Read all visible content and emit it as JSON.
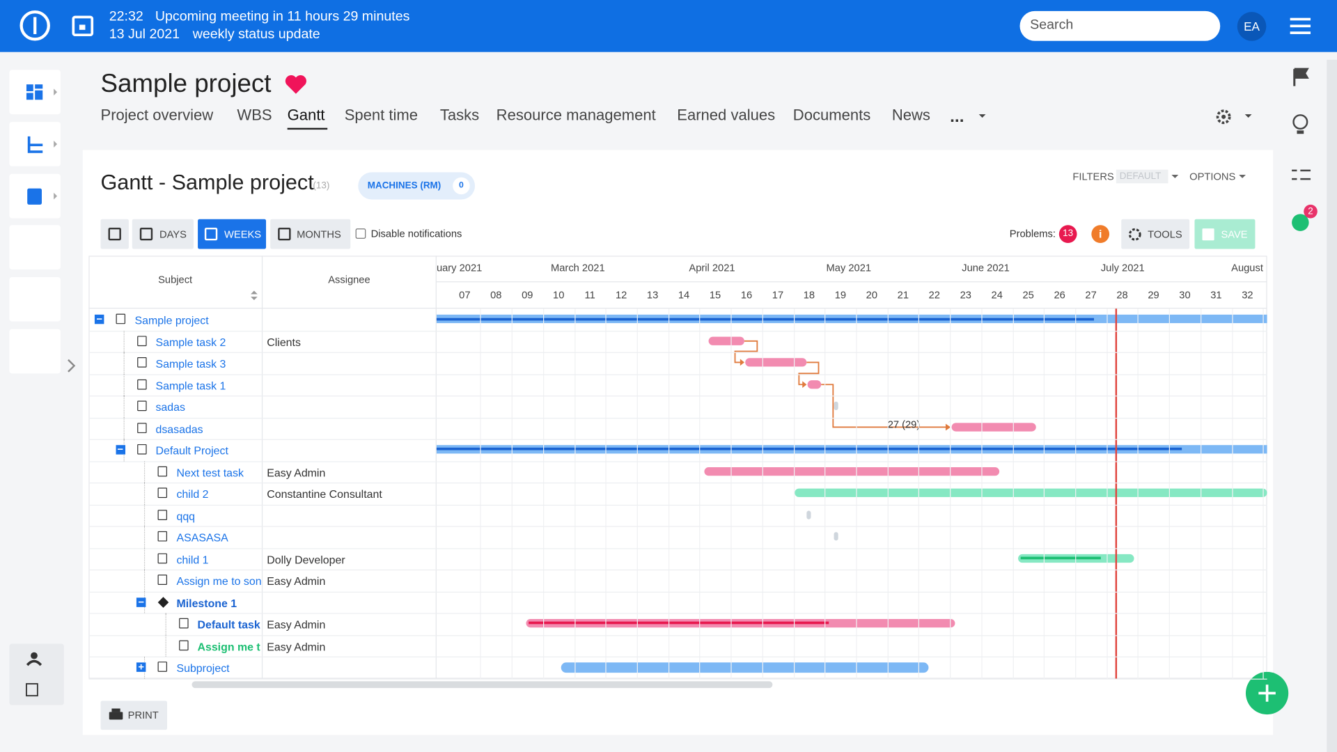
{
  "header": {
    "time": "22:32",
    "message": "Upcoming meeting in 11 hours 29 minutes",
    "date": "13 Jul 2021",
    "meeting": "weekly status update",
    "search_placeholder": "Search",
    "avatar": "EA",
    "notification_count": "2"
  },
  "project": {
    "title": "Sample project",
    "tabs": [
      "Project overview",
      "WBS",
      "Gantt",
      "Spent time",
      "Tasks",
      "Resource management",
      "Earned values",
      "Documents",
      "News"
    ],
    "more": "..."
  },
  "gantt": {
    "title": "Gantt - Sample project",
    "count": "(13)",
    "badge": "MACHINES (RM)",
    "badge_count": "0",
    "filters": "FILTERS",
    "filters_value": "DEFAULT",
    "options": "OPTIONS",
    "buttons": [
      "DAYS",
      "WEEKS",
      "MONTHS"
    ],
    "disable_notifications": "Disable notifications",
    "problems_label": "Problems:",
    "problems_count": "13",
    "tools": "TOOLS",
    "save": "SAVE",
    "columns": [
      "Subject",
      "Assignee"
    ],
    "months": [
      "uary 2021",
      "March 2021",
      "April 2021",
      "May 2021",
      "June 2021",
      "July 2021",
      "August"
    ],
    "weeks": [
      "07",
      "08",
      "09",
      "10",
      "11",
      "12",
      "13",
      "14",
      "15",
      "16",
      "17",
      "18",
      "19",
      "20",
      "21",
      "22",
      "23",
      "24",
      "25",
      "26",
      "27",
      "28",
      "29",
      "30",
      "31",
      "32"
    ],
    "rows": [
      {
        "subject": "Sample project"
      },
      {
        "subject": "Sample task 2",
        "assignee": "Clients"
      },
      {
        "subject": "Sample task 3"
      },
      {
        "subject": "Sample task 1"
      },
      {
        "subject": "sadas"
      },
      {
        "subject": "dsasadas"
      },
      {
        "subject": "Default Project"
      },
      {
        "subject": "Next test task",
        "assignee": "Easy Admin"
      },
      {
        "subject": "child 2",
        "assignee": "Constantine Consultant"
      },
      {
        "subject": "qqq"
      },
      {
        "subject": "ASASASA"
      },
      {
        "subject": "child 1",
        "assignee": "Dolly Developer"
      },
      {
        "subject": "Assign me to son",
        "assignee": "Easy Admin"
      },
      {
        "subject": "Milestone 1"
      },
      {
        "subject": "Default task",
        "assignee": "Easy Admin"
      },
      {
        "subject": "Assign me t",
        "assignee": "Easy Admin"
      },
      {
        "subject": "Subproject"
      }
    ],
    "delay_annotation": "27 (29)",
    "print": "PRINT"
  }
}
